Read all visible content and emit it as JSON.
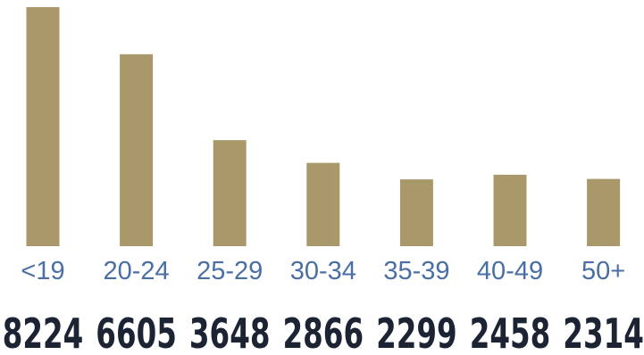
{
  "chart_data": {
    "type": "bar",
    "categories": [
      "<19",
      "20-24",
      "25-29",
      "30-34",
      "35-39",
      "40-49",
      "50+"
    ],
    "values": [
      8224,
      6605,
      3648,
      2866,
      2299,
      2458,
      2314
    ],
    "value_labels": [
      "8224",
      "6605",
      "3648",
      "2866",
      "2299",
      "2458",
      "2314"
    ],
    "title": "",
    "xlabel": "",
    "ylabel": "",
    "ylim": [
      0,
      8224
    ],
    "grid": false,
    "legend": "none"
  },
  "colors": {
    "bar": "#a9996a",
    "category_label": "#4a6fa5",
    "value_label": "#1c2332"
  }
}
